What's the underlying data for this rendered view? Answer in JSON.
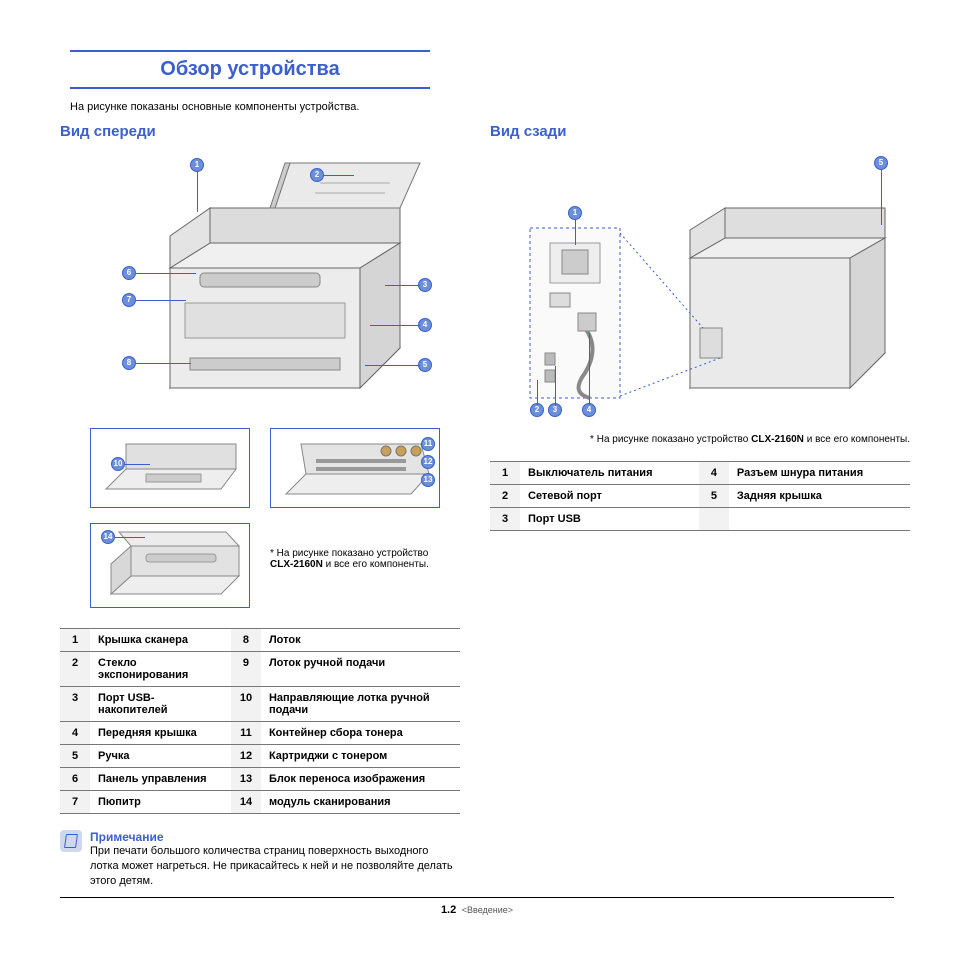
{
  "title": "Обзор устройства",
  "intro": "На рисунке показаны основные компоненты устройства.",
  "front": {
    "heading": "Вид спереди",
    "caption_prefix": "* На рисунке показано устройство ",
    "caption_model": "CLX-2160N",
    "caption_suffix": " и все его компоненты.",
    "rows": [
      {
        "n1": "1",
        "l1": "Крышка сканера",
        "n2": "8",
        "l2": "Лоток"
      },
      {
        "n1": "2",
        "l1": "Стекло экспонирования",
        "n2": "9",
        "l2": "Лоток ручной подачи"
      },
      {
        "n1": "3",
        "l1": "Порт USB-накопителей",
        "n2": "10",
        "l2": "Направляющие лотка ручной подачи"
      },
      {
        "n1": "4",
        "l1": "Передняя крышка",
        "n2": "11",
        "l2": "Контейнер сбора тонера"
      },
      {
        "n1": "5",
        "l1": "Ручка",
        "n2": "12",
        "l2": "Картриджи с тонером"
      },
      {
        "n1": "6",
        "l1": "Панель управления",
        "n2": "13",
        "l2": "Блок переноса изображения"
      },
      {
        "n1": "7",
        "l1": "Пюпитр",
        "n2": "14",
        "l2": "модуль сканирования"
      }
    ],
    "note_title": "Примечание",
    "note_text": "При печати большого количества страниц поверхность выходного лотка может нагреться. Не прикасайтесь к ней и не позволяйте делать этого детям."
  },
  "rear": {
    "heading": "Вид сзади",
    "caption_prefix": "* На рисунке показано устройство ",
    "caption_model": "CLX-2160N",
    "caption_suffix": " и все его компоненты.",
    "rows": [
      {
        "n1": "1",
        "l1": "Выключатель питания",
        "n2": "4",
        "l2": "Разъем шнура питания"
      },
      {
        "n1": "2",
        "l1": "Сетевой порт",
        "n2": "5",
        "l2": "Задняя крышка"
      },
      {
        "n1": "3",
        "l1": "Порт USB",
        "n2": "",
        "l2": ""
      }
    ]
  },
  "footer": {
    "page": "1.2",
    "chapter": "<Введение>"
  },
  "colors": {
    "accent": "#3b5fcc"
  }
}
